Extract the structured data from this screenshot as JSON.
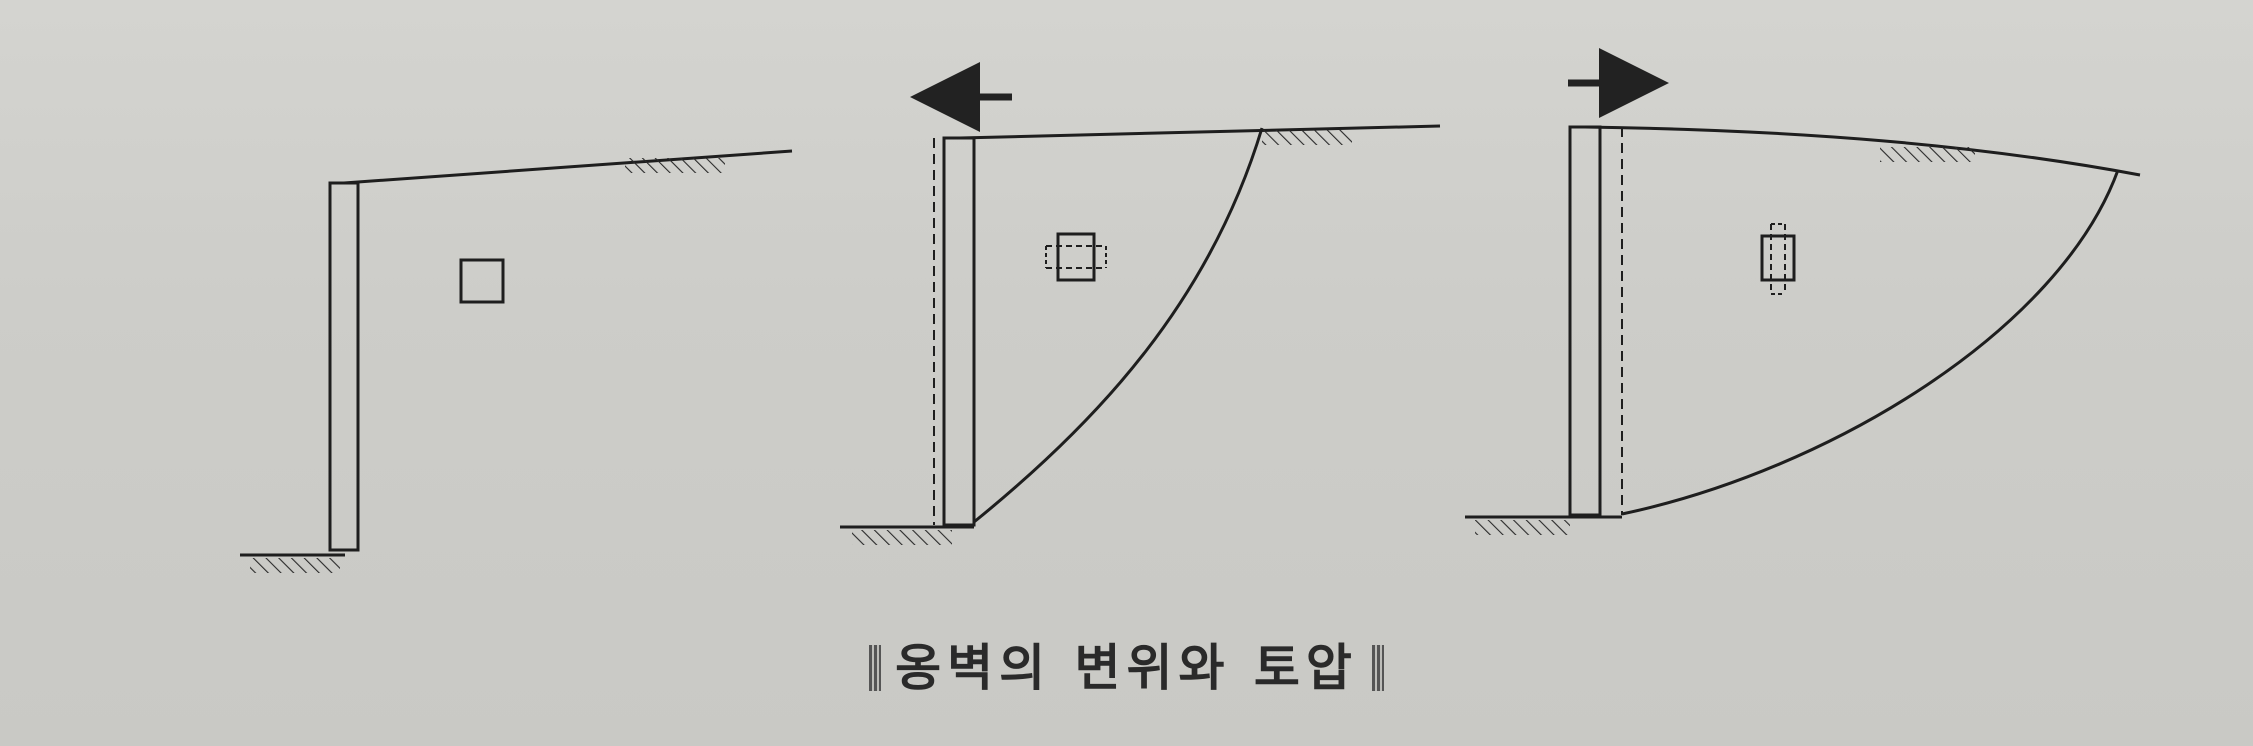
{
  "caption": {
    "text": "옹벽의 변위와 토압"
  },
  "figure": {
    "panels": [
      {
        "name": "at-rest",
        "wall_movement": "none",
        "element_icon": "square-element-icon"
      },
      {
        "name": "active",
        "wall_movement": "left",
        "arrow_icon": "arrow-left-icon",
        "element_icon": "element-horizontal-expansion-icon"
      },
      {
        "name": "passive",
        "wall_movement": "right",
        "arrow_icon": "arrow-right-icon",
        "element_icon": "element-vertical-expansion-icon"
      }
    ],
    "colors": {
      "line": "#1e1e1e",
      "background": "#cfcfcb"
    }
  }
}
